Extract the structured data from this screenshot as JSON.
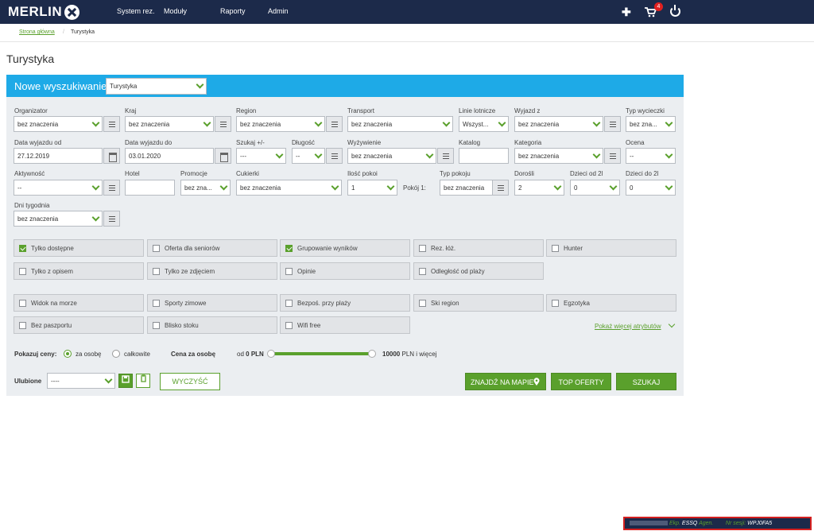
{
  "app": {
    "logo": "MERLIN"
  },
  "nav": {
    "menu": [
      "System rez.",
      "Moduły",
      "Raporty",
      "Admin"
    ],
    "cart_count": "4"
  },
  "breadcrumb": {
    "home": "Strona główna",
    "separator": "/",
    "current": "Turystyka"
  },
  "page": {
    "title": "Turystyka"
  },
  "search": {
    "header_title": "Nowe wyszukiwanie",
    "type_select": "Turystyka",
    "row1": {
      "labels": [
        "Organizator",
        "Kraj",
        "Region",
        "Transport",
        "Linie lotnicze",
        "Wyjazd z",
        "Typ wycieczki"
      ],
      "values": [
        "bez znaczenia",
        "bez znaczenia",
        "bez znaczenia",
        "bez znaczenia",
        "Wszyst...",
        "bez znaczenia",
        "bez zna..."
      ]
    },
    "row2": {
      "labels": [
        "Data wyjazdu od",
        "Data wyjazdu do",
        "Szukaj +/-",
        "Długość",
        "Wyżywienie",
        "Katalog",
        "Kategoria",
        "Ocena"
      ],
      "values": [
        "27.12.2019",
        "03.01.2020",
        "---",
        "--",
        "bez znaczenia",
        "",
        "bez znaczenia",
        "--"
      ]
    },
    "row3": {
      "labels": [
        "Aktywność",
        "Hotel",
        "Promocje",
        "Cukierki",
        "Ilość pokoi",
        "Typ pokoju",
        "Dorośli",
        "Dzieci od 2l",
        "Dzieci do 2l"
      ],
      "values": [
        "--",
        "",
        "bez zna...",
        "bez znaczenia",
        "1",
        "bez znaczenia",
        "2",
        "0",
        "0"
      ],
      "room_label": "Pokój 1:"
    },
    "row4": {
      "label": "Dni tygodnia",
      "value": "bez znaczenia"
    },
    "attributes": [
      {
        "label": "Tylko dostępne",
        "checked": true
      },
      {
        "label": "Oferta dla seniorów",
        "checked": false
      },
      {
        "label": "Grupowanie wyników",
        "checked": true
      },
      {
        "label": "Rez. łóż.",
        "checked": false
      },
      {
        "label": "Hunter",
        "checked": false
      },
      {
        "label": "Tylko z opisem",
        "checked": false
      },
      {
        "label": "Tylko ze zdjęciem",
        "checked": false
      },
      {
        "label": "Opinie",
        "checked": false
      },
      {
        "label": "Odległość od plaży",
        "checked": false
      },
      {
        "label": "Widok na morze",
        "checked": false
      },
      {
        "label": "Sporty zimowe",
        "checked": false
      },
      {
        "label": "Bezpoś. przy plaży",
        "checked": false
      },
      {
        "label": "Ski region",
        "checked": false
      },
      {
        "label": "Egzotyka",
        "checked": false
      },
      {
        "label": "Bez paszportu",
        "checked": false
      },
      {
        "label": "Blisko stoku",
        "checked": false
      },
      {
        "label": "Wifi free",
        "checked": false
      }
    ],
    "more_attributes": "Pokaż więcej atrybutów",
    "price": {
      "show_label": "Pokazuj ceny:",
      "per_person": "za osobę",
      "total": "całkowite",
      "price_per_person": "Cena za osobę",
      "from_prefix": "od",
      "from_value": "0 PLN",
      "to_value": "10000",
      "to_suffix": "PLN i więcej",
      "range_min_fraction": 0,
      "range_max_fraction": 1
    },
    "favorites": {
      "label": "Ulubione",
      "value": "----"
    },
    "buttons": {
      "clear": "WYCZYŚĆ",
      "map": "ZNAJDŹ NA MAPIE",
      "top": "TOP OFERTY",
      "search": "SZUKAJ"
    }
  },
  "session": {
    "exp_label": "Ekp.",
    "agent_code": "ESSQ",
    "agent_label": "Agen.",
    "session_label": "Nr sesji:",
    "session_id": "WPJ0FA5"
  },
  "colors": {
    "nav_bg": "#1c2a4a",
    "header_blue": "#1eaae7",
    "accent_green": "#5aa02c",
    "badge_red": "#e02020"
  }
}
